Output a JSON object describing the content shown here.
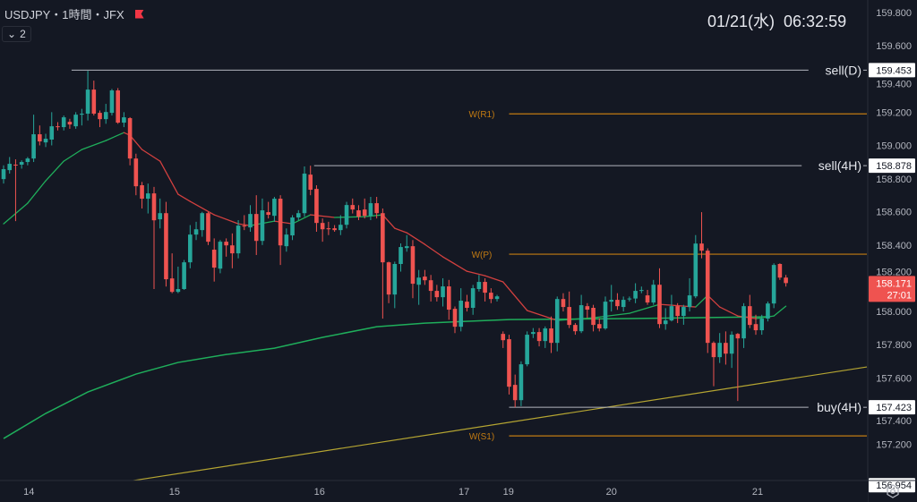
{
  "header": {
    "symbol_title": "USDJPY・1時間・JFX",
    "indicator_count": "2",
    "clock": "01/21(水)  06:32:59"
  },
  "colors": {
    "background": "#141823",
    "up": "#26a69a",
    "down": "#ef5350",
    "ma_up": "#1fae5b",
    "ma_down": "#d2403f",
    "ma_long": "#1fae5b",
    "pivot": "#c27b12",
    "level": "#b2b5be",
    "trendline": "#b5a532",
    "grid_text": "#b2b5be"
  },
  "chart_data": {
    "type": "candlestick",
    "symbol": "USDJPY",
    "timeframe": "1時間",
    "ylim": [
      156.93,
      159.8
    ],
    "y_ticks": [
      159.8,
      159.6,
      159.4,
      159.2,
      159.0,
      158.8,
      158.6,
      158.4,
      158.2,
      158.0,
      157.8,
      157.6,
      157.4,
      157.2
    ],
    "x_ticks": [
      {
        "index": 4.2,
        "label": "14"
      },
      {
        "index": 28.4,
        "label": "15"
      },
      {
        "index": 52.5,
        "label": "16"
      },
      {
        "index": 76.5,
        "label": "17"
      },
      {
        "index": 83.9,
        "label": "19"
      },
      {
        "index": 101.0,
        "label": "20"
      },
      {
        "index": 125.3,
        "label": "21"
      }
    ],
    "candles_ohlc": [
      [
        158.797,
        158.88,
        158.77,
        158.857
      ],
      [
        158.851,
        158.93,
        158.83,
        158.889
      ],
      [
        158.884,
        158.916,
        158.544,
        158.879
      ],
      [
        158.884,
        158.91,
        158.86,
        158.9
      ],
      [
        158.9,
        158.93,
        158.88,
        158.921
      ],
      [
        158.921,
        159.185,
        158.9,
        159.067
      ],
      [
        159.067,
        159.12,
        159.0,
        159.024
      ],
      [
        159.018,
        159.07,
        158.99,
        159.04
      ],
      [
        159.035,
        159.2,
        159.0,
        159.115
      ],
      [
        159.115,
        159.14,
        159.09,
        159.112
      ],
      [
        159.11,
        159.18,
        159.09,
        159.169
      ],
      [
        159.142,
        159.16,
        159.1,
        159.126
      ],
      [
        159.115,
        159.2,
        159.1,
        159.185
      ],
      [
        159.185,
        159.22,
        159.12,
        159.191
      ],
      [
        159.191,
        159.449,
        159.15,
        159.336
      ],
      [
        159.336,
        159.39,
        159.18,
        159.191
      ],
      [
        159.196,
        159.21,
        159.11,
        159.158
      ],
      [
        159.158,
        159.25,
        159.13,
        159.201
      ],
      [
        159.196,
        159.34,
        159.18,
        159.331
      ],
      [
        159.331,
        159.345,
        159.13,
        159.137
      ],
      [
        159.137,
        159.2,
        159.11,
        159.169
      ],
      [
        159.164,
        159.17,
        158.88,
        158.921
      ],
      [
        158.921,
        158.95,
        158.7,
        158.754
      ],
      [
        158.76,
        158.78,
        158.62,
        158.679
      ],
      [
        158.679,
        158.77,
        158.59,
        158.711
      ],
      [
        158.711,
        158.75,
        158.135,
        158.549
      ],
      [
        158.555,
        158.68,
        158.5,
        158.592
      ],
      [
        158.592,
        158.66,
        158.15,
        158.194
      ],
      [
        158.199,
        158.35,
        158.11,
        158.118
      ],
      [
        158.118,
        158.27,
        158.11,
        158.135
      ],
      [
        158.135,
        158.31,
        158.13,
        158.296
      ],
      [
        158.296,
        158.52,
        158.26,
        158.463
      ],
      [
        158.463,
        158.54,
        158.43,
        158.495
      ],
      [
        158.49,
        158.6,
        158.45,
        158.592
      ],
      [
        158.592,
        158.6,
        158.4,
        158.42
      ],
      [
        158.372,
        158.44,
        158.18,
        158.264
      ],
      [
        158.258,
        158.43,
        158.23,
        158.42
      ],
      [
        158.42,
        158.44,
        158.33,
        158.398
      ],
      [
        158.398,
        158.47,
        158.26,
        158.35
      ],
      [
        158.35,
        158.55,
        158.32,
        158.517
      ],
      [
        158.517,
        158.58,
        158.49,
        158.512
      ],
      [
        158.506,
        158.64,
        158.48,
        158.587
      ],
      [
        158.587,
        158.7,
        158.34,
        158.425
      ],
      [
        158.425,
        158.68,
        158.4,
        158.609
      ],
      [
        158.598,
        158.66,
        158.56,
        158.582
      ],
      [
        158.576,
        158.69,
        158.54,
        158.679
      ],
      [
        158.679,
        158.7,
        158.28,
        158.398
      ],
      [
        158.393,
        158.5,
        158.36,
        158.463
      ],
      [
        158.458,
        158.58,
        158.43,
        158.566
      ],
      [
        158.566,
        158.61,
        158.55,
        158.592
      ],
      [
        158.592,
        158.873,
        158.57,
        158.83
      ],
      [
        158.824,
        158.878,
        158.7,
        158.733
      ],
      [
        158.738,
        158.76,
        158.48,
        158.533
      ],
      [
        158.533,
        158.56,
        158.42,
        158.495
      ],
      [
        158.501,
        158.54,
        158.46,
        158.495
      ],
      [
        158.501,
        158.52,
        158.48,
        158.49
      ],
      [
        158.49,
        158.58,
        158.46,
        158.522
      ],
      [
        158.522,
        158.66,
        158.5,
        158.641
      ],
      [
        158.641,
        158.68,
        158.59,
        158.614
      ],
      [
        158.609,
        158.64,
        158.55,
        158.571
      ],
      [
        158.614,
        158.68,
        158.56,
        158.576
      ],
      [
        158.576,
        158.69,
        158.55,
        158.652
      ],
      [
        158.652,
        158.69,
        158.56,
        158.592
      ],
      [
        158.592,
        158.62,
        157.957,
        158.296
      ],
      [
        158.296,
        158.3,
        158.05,
        158.102
      ],
      [
        158.102,
        158.3,
        158.02,
        158.286
      ],
      [
        158.286,
        158.41,
        158.24,
        158.388
      ],
      [
        158.382,
        158.46,
        158.36,
        158.393
      ],
      [
        158.393,
        158.43,
        158.08,
        158.167
      ],
      [
        158.161,
        158.25,
        158.04,
        158.204
      ],
      [
        158.21,
        158.25,
        158.16,
        158.188
      ],
      [
        158.188,
        158.22,
        158.06,
        158.124
      ],
      [
        158.124,
        158.16,
        158.06,
        158.086
      ],
      [
        158.086,
        158.2,
        158.03,
        158.151
      ],
      [
        158.151,
        158.19,
        157.95,
        158.011
      ],
      [
        158.016,
        158.03,
        157.87,
        157.908
      ],
      [
        157.908,
        158.14,
        157.88,
        158.065
      ],
      [
        158.059,
        158.1,
        158.0,
        158.022
      ],
      [
        158.022,
        158.16,
        157.98,
        158.14
      ],
      [
        158.135,
        158.22,
        158.12,
        158.178
      ],
      [
        158.178,
        158.2,
        158.06,
        158.113
      ],
      [
        158.113,
        158.14,
        158.05,
        158.075
      ],
      [
        158.075,
        158.1,
        158.06,
        158.091
      ],
      [
        157.865,
        157.88,
        157.78,
        157.827
      ],
      [
        157.833,
        157.86,
        157.5,
        157.547
      ],
      [
        157.558,
        157.62,
        157.423,
        157.466
      ],
      [
        157.466,
        157.7,
        157.43,
        157.682
      ],
      [
        157.682,
        157.88,
        157.67,
        157.86
      ],
      [
        157.865,
        157.9,
        157.84,
        157.876
      ],
      [
        157.876,
        157.9,
        157.79,
        157.822
      ],
      [
        157.822,
        157.91,
        157.78,
        157.898
      ],
      [
        157.898,
        157.97,
        157.75,
        157.811
      ],
      [
        157.811,
        158.09,
        157.76,
        158.075
      ],
      [
        158.075,
        158.11,
        158.0,
        158.027
      ],
      [
        158.027,
        158.12,
        157.9,
        157.919
      ],
      [
        157.919,
        157.93,
        157.86,
        157.881
      ],
      [
        157.881,
        158.1,
        157.87,
        158.038
      ],
      [
        158.032,
        158.05,
        157.96,
        158.011
      ],
      [
        158.022,
        158.04,
        157.88,
        157.919
      ],
      [
        157.924,
        157.96,
        157.88,
        157.898
      ],
      [
        157.898,
        158.09,
        157.89,
        158.059
      ],
      [
        158.059,
        158.16,
        158.0,
        158.07
      ],
      [
        158.07,
        158.11,
        158.01,
        158.032
      ],
      [
        158.027,
        158.09,
        158.0,
        158.07
      ],
      [
        158.075,
        158.09,
        158.06,
        158.078
      ],
      [
        158.078,
        158.17,
        158.05,
        158.124
      ],
      [
        158.129,
        158.15,
        158.11,
        158.129
      ],
      [
        158.097,
        158.13,
        158.04,
        158.054
      ],
      [
        158.054,
        158.19,
        158.04,
        158.161
      ],
      [
        158.161,
        158.26,
        157.9,
        157.924
      ],
      [
        157.924,
        158.02,
        157.89,
        157.946
      ],
      [
        157.946,
        158.1,
        157.94,
        158.032
      ],
      [
        158.032,
        158.05,
        157.93,
        157.973
      ],
      [
        157.973,
        158.04,
        157.92,
        158.027
      ],
      [
        158.027,
        158.2,
        158.0,
        158.097
      ],
      [
        158.091,
        158.46,
        158.08,
        158.409
      ],
      [
        158.409,
        158.598,
        158.32,
        158.366
      ],
      [
        158.366,
        158.38,
        157.75,
        157.811
      ],
      [
        157.811,
        157.82,
        157.55,
        157.725
      ],
      [
        157.725,
        157.87,
        157.69,
        157.811
      ],
      [
        157.811,
        157.88,
        157.68,
        157.746
      ],
      [
        157.746,
        157.88,
        157.66,
        157.86
      ],
      [
        157.865,
        157.87,
        157.461,
        157.838
      ],
      [
        157.838,
        158.05,
        157.78,
        158.032
      ],
      [
        158.032,
        158.1,
        157.9,
        157.919
      ],
      [
        157.924,
        157.98,
        157.86,
        157.887
      ],
      [
        157.887,
        157.98,
        157.86,
        157.957
      ],
      [
        157.957,
        158.06,
        157.94,
        158.048
      ],
      [
        158.048,
        158.29,
        158.02,
        158.28
      ],
      [
        158.286,
        158.29,
        158.19,
        158.204
      ],
      [
        158.204,
        158.22,
        158.15,
        158.171
      ]
    ],
    "ma_short": [
      [
        0,
        158.528
      ],
      [
        4,
        158.652
      ],
      [
        7,
        158.787
      ],
      [
        10,
        158.905
      ],
      [
        13,
        158.975
      ],
      [
        17,
        159.029
      ],
      [
        20,
        159.077
      ],
      [
        21,
        159.061
      ],
      [
        23,
        158.975
      ],
      [
        26,
        158.905
      ],
      [
        29,
        158.706
      ],
      [
        31,
        158.663
      ],
      [
        35,
        158.582
      ],
      [
        39,
        158.528
      ],
      [
        41,
        158.517
      ],
      [
        45,
        158.544
      ],
      [
        48,
        158.528
      ],
      [
        51,
        158.582
      ],
      [
        55,
        158.566
      ],
      [
        60,
        158.571
      ],
      [
        63,
        158.582
      ],
      [
        65,
        158.501
      ],
      [
        67,
        158.474
      ],
      [
        70,
        158.404
      ],
      [
        73,
        158.329
      ],
      [
        77,
        158.242
      ],
      [
        80,
        158.215
      ],
      [
        83,
        158.178
      ],
      [
        87,
        158.006
      ],
      [
        92,
        157.946
      ],
      [
        98,
        157.962
      ],
      [
        104,
        157.989
      ],
      [
        109,
        158.043
      ],
      [
        115,
        158.027
      ],
      [
        117,
        158.097
      ],
      [
        119,
        158.027
      ],
      [
        122,
        157.973
      ],
      [
        125,
        157.957
      ],
      [
        128,
        157.973
      ],
      [
        130,
        158.032
      ]
    ],
    "ma_long": [
      [
        0,
        157.235
      ],
      [
        7,
        157.386
      ],
      [
        14,
        157.515
      ],
      [
        22,
        157.623
      ],
      [
        29,
        157.693
      ],
      [
        37,
        157.741
      ],
      [
        45,
        157.779
      ],
      [
        53,
        157.844
      ],
      [
        62,
        157.908
      ],
      [
        70,
        157.93
      ],
      [
        84,
        157.951
      ],
      [
        104,
        157.957
      ],
      [
        127,
        157.968
      ]
    ],
    "trendline": [
      [
        21.4,
        156.981
      ],
      [
        143.75,
        157.666
      ]
    ],
    "levels": [
      {
        "label": "sell(D)",
        "price": 159.453,
        "price_label": "159.453",
        "start": 11.3,
        "kind": "level"
      },
      {
        "label": "sell(4H)",
        "price": 158.878,
        "price_label": "158.878",
        "start": 51.6,
        "kind": "level"
      },
      {
        "label": "buy(4H)",
        "price": 157.423,
        "price_label": "157.423",
        "start": 84,
        "kind": "level"
      }
    ],
    "pivots": [
      {
        "label": "W(R1)",
        "price": 159.19,
        "start": 84
      },
      {
        "label": "W(P)",
        "price": 158.345,
        "start": 84
      },
      {
        "label": "W(S1)",
        "price": 157.251,
        "start": 84
      }
    ],
    "current_price": {
      "value": "158.171",
      "countdown": "27:01",
      "price": 158.171
    },
    "extra_price_label": {
      "value": "156.954",
      "price": 156.954
    }
  }
}
